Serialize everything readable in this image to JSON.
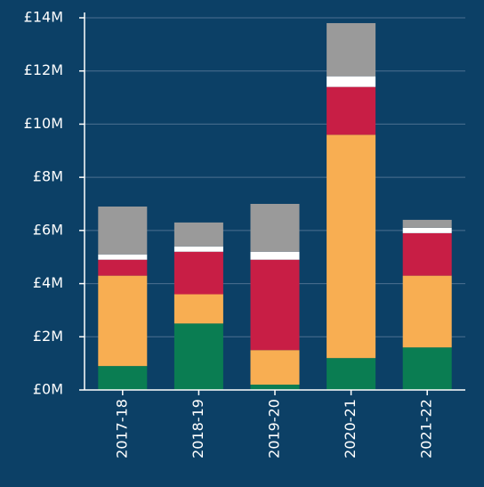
{
  "chart_data": {
    "type": "stacked-bar",
    "categories": [
      "2017-18",
      "2018-19",
      "2019-20",
      "2020-21",
      "2021-22"
    ],
    "series": [
      {
        "color": "#0a7d52",
        "values": [
          0.9,
          2.5,
          0.2,
          1.2,
          1.6
        ]
      },
      {
        "color": "#f8ae52",
        "values": [
          3.4,
          1.1,
          1.3,
          8.4,
          2.7
        ]
      },
      {
        "color": "#c81e45",
        "values": [
          0.6,
          1.6,
          3.4,
          1.8,
          1.6
        ]
      },
      {
        "color": "#ffffff",
        "values": [
          0.2,
          0.2,
          0.3,
          0.4,
          0.2
        ]
      },
      {
        "color": "#9a9a9a",
        "values": [
          1.8,
          0.9,
          1.8,
          2.0,
          0.3
        ]
      }
    ],
    "ylim": [
      0,
      14
    ],
    "yticks": [
      {
        "value": 0,
        "label": "£0M"
      },
      {
        "value": 2,
        "label": "£2M"
      },
      {
        "value": 4,
        "label": "£4M"
      },
      {
        "value": 6,
        "label": "£6M"
      },
      {
        "value": 8,
        "label": "£8M"
      },
      {
        "value": 10,
        "label": "£10M"
      },
      {
        "value": 12,
        "label": "£12M"
      },
      {
        "value": 14,
        "label": "£14M"
      }
    ],
    "grid": true
  }
}
